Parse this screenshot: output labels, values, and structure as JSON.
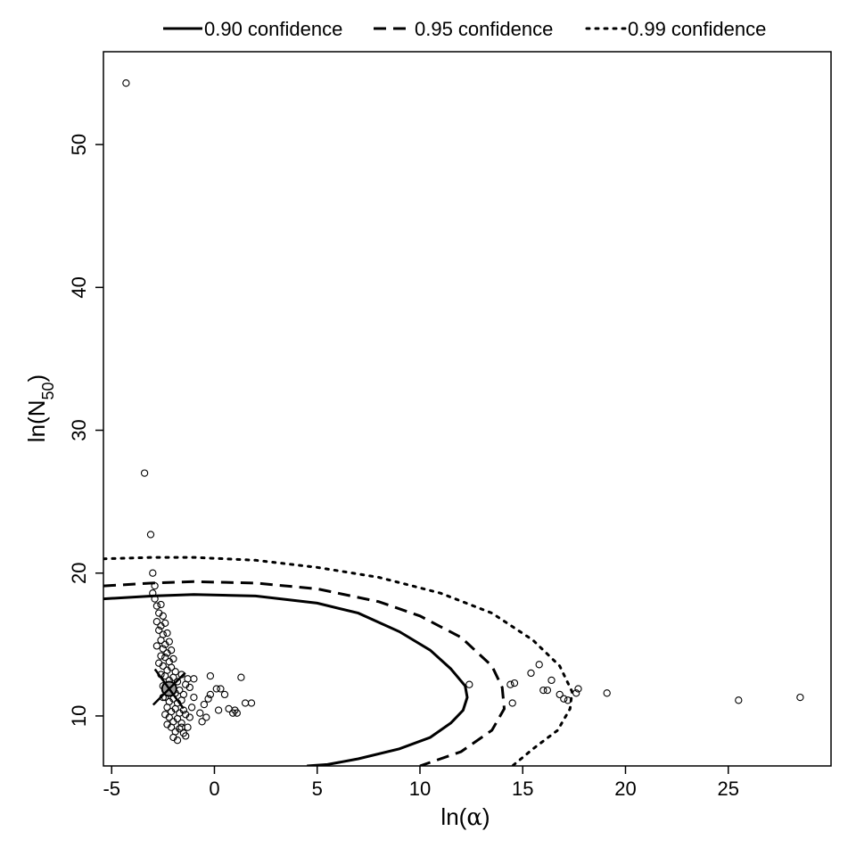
{
  "chart_data": {
    "type": "scatter",
    "title": "",
    "xlabel": {
      "main": "ln(",
      "symbol": "α",
      "close": ")"
    },
    "ylabel": {
      "main": "ln(N",
      "sub": "50",
      "close": ")"
    },
    "xlim": [
      -5.4,
      30.0
    ],
    "ylim": [
      6.5,
      56.5
    ],
    "x_ticks": [
      -5,
      0,
      5,
      10,
      15,
      20,
      25
    ],
    "y_ticks": [
      10,
      20,
      30,
      40,
      50
    ],
    "grid": false,
    "legend": {
      "placement": "top-outside",
      "entries": [
        {
          "label": "0.90 confidence",
          "style": "solid"
        },
        {
          "label": "0.95 confidence",
          "style": "dashed"
        },
        {
          "label": "0.99 confidence",
          "style": "dotted"
        }
      ]
    },
    "best_estimate": {
      "x": -2.2,
      "y": 11.9,
      "marker": "filled-circle-with-x"
    },
    "contours": [
      {
        "level": "0.90 confidence",
        "style": "solid",
        "points": [
          [
            -5.4,
            18.2
          ],
          [
            -3,
            18.4
          ],
          [
            -1,
            18.5
          ],
          [
            2,
            18.4
          ],
          [
            5,
            17.9
          ],
          [
            7,
            17.2
          ],
          [
            9,
            15.9
          ],
          [
            10.5,
            14.6
          ],
          [
            11.5,
            13.3
          ],
          [
            12.2,
            12.1
          ],
          [
            12.3,
            11.3
          ],
          [
            12.1,
            10.4
          ],
          [
            11.5,
            9.5
          ],
          [
            10.5,
            8.5
          ],
          [
            9,
            7.7
          ],
          [
            7,
            7.0
          ],
          [
            5.5,
            6.6
          ],
          [
            4.5,
            6.5
          ]
        ]
      },
      {
        "level": "0.95 confidence",
        "style": "dashed",
        "points": [
          [
            -5.4,
            19.1
          ],
          [
            -3,
            19.3
          ],
          [
            -1,
            19.4
          ],
          [
            2,
            19.3
          ],
          [
            5,
            18.9
          ],
          [
            8,
            18.0
          ],
          [
            10,
            17.0
          ],
          [
            12,
            15.5
          ],
          [
            13.5,
            13.5
          ],
          [
            14.0,
            12.0
          ],
          [
            14.1,
            10.5
          ],
          [
            13.5,
            9.0
          ],
          [
            12,
            7.5
          ],
          [
            10,
            6.5
          ]
        ]
      },
      {
        "level": "0.99 confidence",
        "style": "dotted",
        "points": [
          [
            -5.4,
            21.0
          ],
          [
            -3,
            21.1
          ],
          [
            -1,
            21.1
          ],
          [
            2,
            20.9
          ],
          [
            5,
            20.4
          ],
          [
            8,
            19.7
          ],
          [
            11,
            18.6
          ],
          [
            13.5,
            17.2
          ],
          [
            15.5,
            15.3
          ],
          [
            16.8,
            13.5
          ],
          [
            17.4,
            11.7
          ],
          [
            17.3,
            10.5
          ],
          [
            16.7,
            9.0
          ],
          [
            15.5,
            7.7
          ],
          [
            14.5,
            6.5
          ]
        ]
      }
    ],
    "points": [
      [
        -4.3,
        54.3
      ],
      [
        -3.4,
        27.0
      ],
      [
        -3.1,
        22.7
      ],
      [
        -3.0,
        20.0
      ],
      [
        -2.9,
        19.1
      ],
      [
        -3.0,
        18.6
      ],
      [
        -2.9,
        18.2
      ],
      [
        -2.8,
        17.7
      ],
      [
        -2.6,
        17.8
      ],
      [
        -2.7,
        17.2
      ],
      [
        -2.5,
        17.0
      ],
      [
        -2.8,
        16.6
      ],
      [
        -2.6,
        16.3
      ],
      [
        -2.4,
        16.5
      ],
      [
        -2.7,
        16.0
      ],
      [
        -2.5,
        15.7
      ],
      [
        -2.3,
        15.8
      ],
      [
        -2.6,
        15.3
      ],
      [
        -2.4,
        15.0
      ],
      [
        -2.2,
        15.2
      ],
      [
        -2.5,
        14.7
      ],
      [
        -2.3,
        14.4
      ],
      [
        -2.1,
        14.6
      ],
      [
        -2.4,
        14.1
      ],
      [
        -2.2,
        13.8
      ],
      [
        -2.0,
        14.0
      ],
      [
        -2.5,
        13.5
      ],
      [
        -2.3,
        13.2
      ],
      [
        -2.1,
        13.4
      ],
      [
        -1.9,
        13.1
      ],
      [
        -2.4,
        12.8
      ],
      [
        -2.2,
        12.5
      ],
      [
        -2.0,
        12.7
      ],
      [
        -1.8,
        12.4
      ],
      [
        -2.5,
        12.1
      ],
      [
        -2.3,
        11.7
      ],
      [
        -2.1,
        11.9
      ],
      [
        -1.9,
        11.6
      ],
      [
        -1.7,
        11.8
      ],
      [
        -2.4,
        11.3
      ],
      [
        -2.2,
        11.0
      ],
      [
        -2.0,
        11.2
      ],
      [
        -1.8,
        10.9
      ],
      [
        -1.6,
        11.1
      ],
      [
        -2.3,
        10.6
      ],
      [
        -2.1,
        10.3
      ],
      [
        -1.9,
        10.5
      ],
      [
        -1.7,
        10.2
      ],
      [
        -1.5,
        10.4
      ],
      [
        -2.2,
        9.9
      ],
      [
        -2.0,
        9.6
      ],
      [
        -1.8,
        9.8
      ],
      [
        -1.6,
        9.5
      ],
      [
        -2.1,
        9.2
      ],
      [
        -1.9,
        8.9
      ],
      [
        -1.7,
        9.1
      ],
      [
        -1.5,
        8.8
      ],
      [
        -2.0,
        8.5
      ],
      [
        -1.8,
        8.3
      ],
      [
        -1.4,
        8.6
      ],
      [
        -1.3,
        9.2
      ],
      [
        -1.2,
        9.9
      ],
      [
        -1.1,
        10.6
      ],
      [
        -1.0,
        11.3
      ],
      [
        -1.2,
        12.0
      ],
      [
        -1.3,
        12.6
      ],
      [
        -1.4,
        12.2
      ],
      [
        -1.0,
        12.6
      ],
      [
        -0.7,
        10.2
      ],
      [
        -0.5,
        10.8
      ],
      [
        -0.3,
        11.2
      ],
      [
        -0.2,
        11.5
      ],
      [
        0.1,
        11.9
      ],
      [
        0.2,
        10.4
      ],
      [
        0.3,
        11.9
      ],
      [
        -0.4,
        9.9
      ],
      [
        -0.6,
        9.6
      ],
      [
        0.5,
        11.5
      ],
      [
        0.7,
        10.5
      ],
      [
        0.9,
        10.2
      ],
      [
        1.0,
        10.4
      ],
      [
        1.1,
        10.2
      ],
      [
        1.3,
        12.7
      ],
      [
        1.5,
        10.9
      ],
      [
        1.8,
        10.9
      ],
      [
        -2.8,
        14.9
      ],
      [
        -2.7,
        13.7
      ],
      [
        -2.6,
        12.9
      ],
      [
        -2.5,
        11.3
      ],
      [
        -2.4,
        10.1
      ],
      [
        -2.3,
        9.4
      ],
      [
        -2.6,
        14.2
      ],
      [
        -1.6,
        12.9
      ],
      [
        -1.5,
        11.5
      ],
      [
        -1.4,
        10.1
      ],
      [
        -1.6,
        9.2
      ],
      [
        -0.2,
        12.8
      ],
      [
        12.4,
        12.2
      ],
      [
        14.4,
        12.2
      ],
      [
        14.6,
        12.3
      ],
      [
        14.5,
        10.9
      ],
      [
        15.4,
        13.0
      ],
      [
        15.8,
        13.6
      ],
      [
        16.0,
        11.8
      ],
      [
        16.2,
        11.8
      ],
      [
        16.4,
        12.5
      ],
      [
        16.8,
        11.5
      ],
      [
        17.0,
        11.2
      ],
      [
        17.2,
        11.1
      ],
      [
        17.6,
        11.6
      ],
      [
        17.7,
        11.9
      ],
      [
        19.1,
        11.6
      ],
      [
        25.5,
        11.1
      ],
      [
        28.5,
        11.3
      ]
    ]
  }
}
